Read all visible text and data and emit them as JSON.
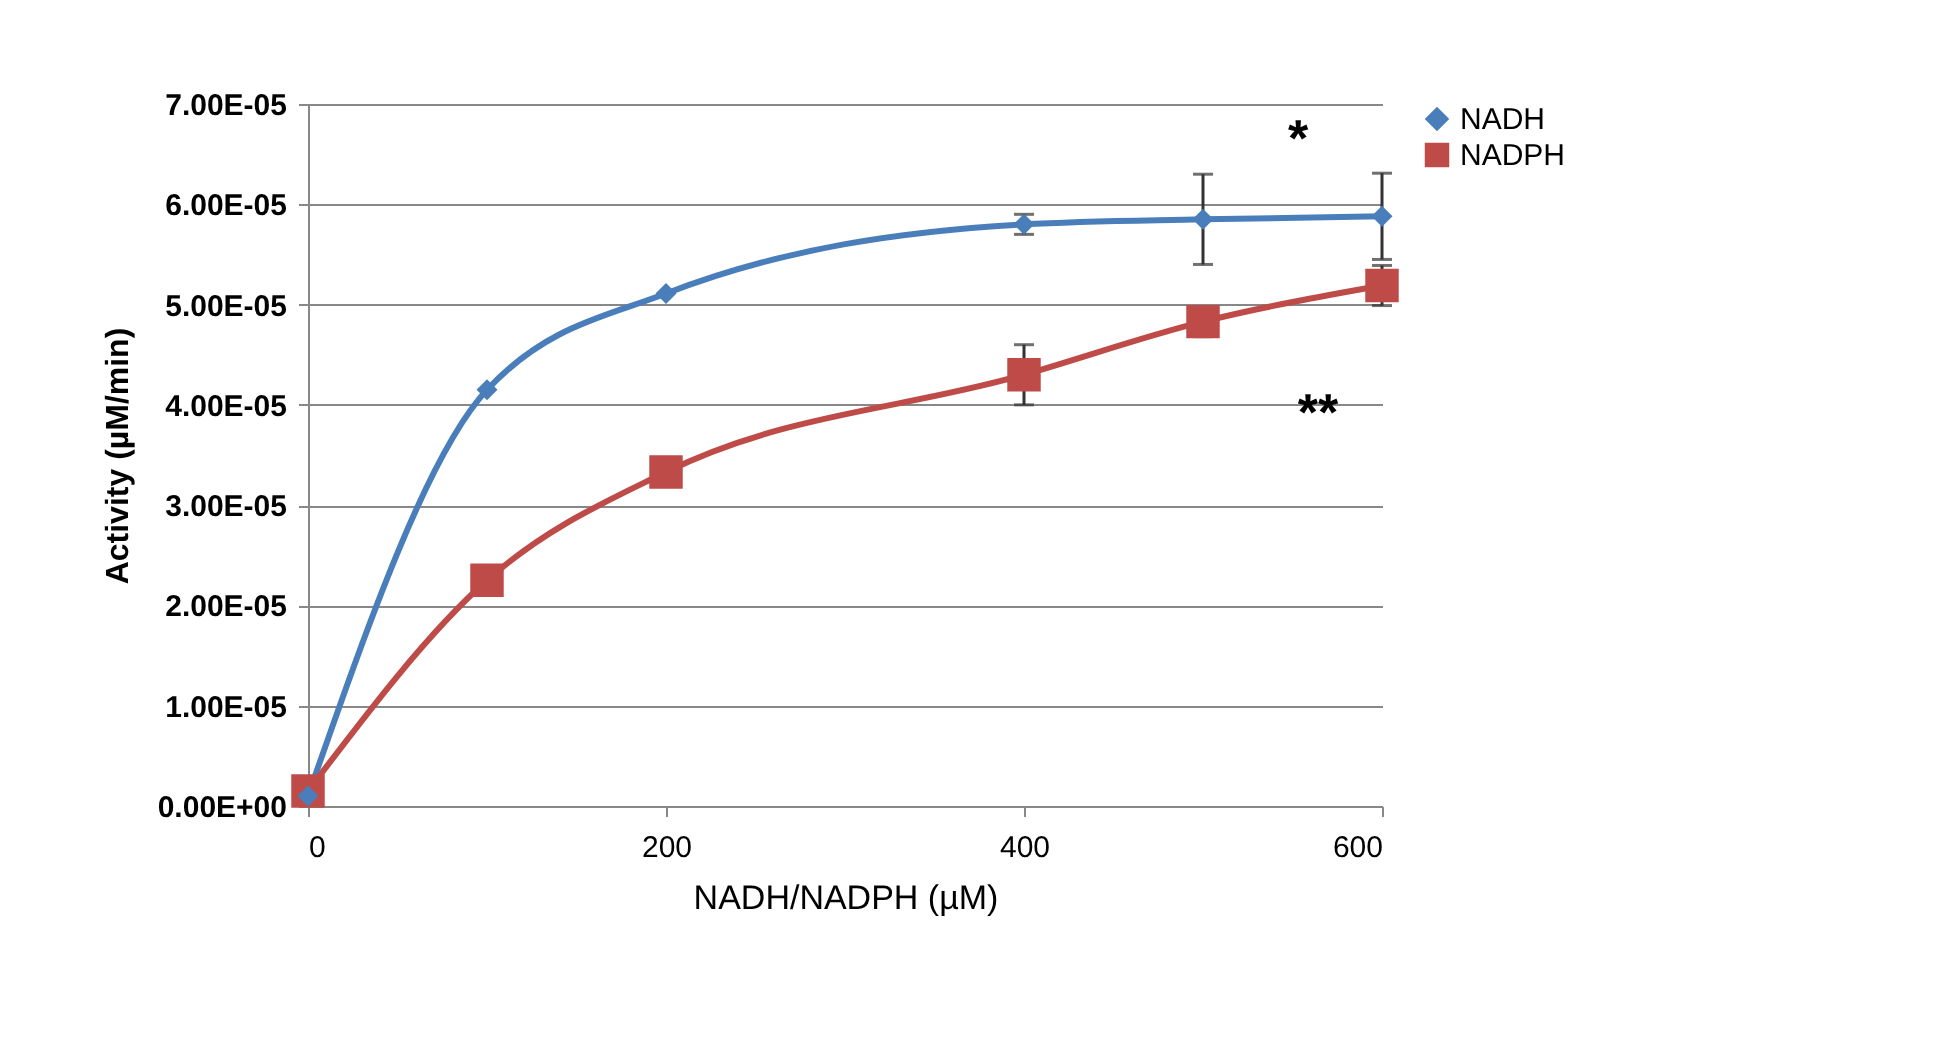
{
  "chart_data": {
    "type": "line",
    "xlabel": "NADH/NADPH (µM)",
    "ylabel": "Activity (µM/min)",
    "xlim": [
      0,
      600
    ],
    "xticks": [
      0,
      200,
      400,
      600
    ],
    "ylim": [
      0,
      7e-05
    ],
    "yticks": [
      {
        "value": 0,
        "label": "0.00E+00"
      },
      {
        "value": 1e-05,
        "label": "1.00E-05"
      },
      {
        "value": 2e-05,
        "label": "2.00E-05"
      },
      {
        "value": 3e-05,
        "label": "3.00E-05"
      },
      {
        "value": 4e-05,
        "label": "4.00E-05"
      },
      {
        "value": 5e-05,
        "label": "5.00E-05"
      },
      {
        "value": 6e-05,
        "label": "6.00E-05"
      },
      {
        "value": 7e-05,
        "label": "7.00E-05"
      }
    ],
    "grid": "y",
    "legend": "right",
    "series": [
      {
        "name": "NADH",
        "color": "#4a7ebb",
        "marker": "diamond",
        "x": [
          0,
          100,
          200,
          400,
          500,
          600
        ],
        "values": [
          1e-06,
          4.15e-05,
          5.11e-05,
          5.8e-05,
          5.85e-05,
          5.88e-05
        ],
        "errors": [
          null,
          null,
          null,
          1e-06,
          4.5e-06,
          4.3e-06
        ]
      },
      {
        "name": "NADPH",
        "color": "#be4b48",
        "marker": "square",
        "x": [
          0,
          100,
          200,
          400,
          500,
          600
        ],
        "values": [
          1.5e-06,
          2.25e-05,
          3.33e-05,
          4.3e-05,
          4.83e-05,
          5.19e-05
        ],
        "errors": [
          null,
          null,
          null,
          3e-06,
          1.5e-06,
          2e-06
        ]
      }
    ],
    "annotations": [
      "*",
      "**"
    ]
  }
}
